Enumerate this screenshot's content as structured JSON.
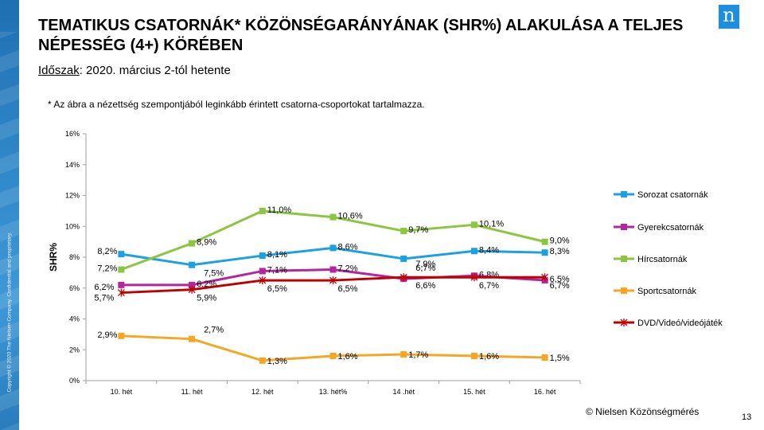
{
  "header": {
    "title": "TEMATIKUS CSATORNÁK* KÖZÖNSÉGARÁNYÁNAK  (SHR%) ALAKULÁSA A TELJES NÉPESSÉG (4+) KÖRÉBEN",
    "period_label": "Időszak",
    "period_value": ": 2020. március 2-tól hetente",
    "footnote": "* Az ábra a nézettség szempontjából leginkább  érintett  csatorna-csoportokat tartalmazza."
  },
  "logo_text": "n",
  "copyright": "Copyright © 2020 The Nielsen Company. Confidential and proprietary.",
  "source": "© Nielsen Közönségmérés",
  "page_number": "13",
  "chart_data": {
    "type": "line",
    "categories": [
      "10. hét",
      "11. hét",
      "12. hét",
      "13. hét%",
      "14 .hét",
      "15. hét",
      "16. hét"
    ],
    "ylabel": "SHR%",
    "ylim": [
      0,
      16
    ],
    "yticks": [
      0,
      2,
      4,
      6,
      8,
      10,
      12,
      14,
      16
    ],
    "ytick_labels": [
      "0%",
      "2%",
      "4%",
      "6%",
      "8%",
      "10%",
      "12%",
      "14%",
      "16%"
    ],
    "grid": false,
    "legend_position": "right",
    "series": [
      {
        "name": "Sorozat csatornák",
        "color": "#1ba1e2",
        "marker": "square",
        "values": [
          8.2,
          7.5,
          8.1,
          8.6,
          7.9,
          8.4,
          8.3
        ],
        "labels": [
          "8,2%",
          "7,5%",
          "8,1%",
          "8,6%",
          "7,9%",
          "8,4%",
          "8,3%"
        ]
      },
      {
        "name": "Gyerekcsatornák",
        "color": "#b5259e",
        "marker": "square",
        "values": [
          6.2,
          6.2,
          7.1,
          7.2,
          6.6,
          6.8,
          6.5
        ],
        "labels": [
          "6,2%",
          "6,2%",
          "7,1%",
          "7,2%",
          "6,6%",
          "6,8%",
          "6,5%"
        ]
      },
      {
        "name": "Hírcsatornák",
        "color": "#8cc63f",
        "marker": "square",
        "values": [
          7.2,
          8.9,
          11.0,
          10.6,
          9.7,
          10.1,
          9.0
        ],
        "labels": [
          "7,2%",
          "8,9%",
          "11,0%",
          "10,6%",
          "9,7%",
          "10,1%",
          "9,0%"
        ]
      },
      {
        "name": "Sportcsatornák",
        "color": "#f5a623",
        "marker": "square",
        "values": [
          2.9,
          2.7,
          1.3,
          1.6,
          1.7,
          1.6,
          1.5
        ],
        "labels": [
          "2,9%",
          "2,7%",
          "1,3%",
          "1,6%",
          "1,7%",
          "1,6%",
          "1,5%"
        ]
      },
      {
        "name": "DVD/Videó/videójáték",
        "color": "#c00000",
        "marker": "star",
        "values": [
          5.7,
          5.9,
          6.5,
          6.5,
          6.7,
          6.7,
          6.7
        ],
        "labels": [
          "5,7%",
          "5,9%",
          "6,5%",
          "6,5%",
          "6,7%",
          "6,7%",
          "6,7%"
        ]
      }
    ]
  }
}
